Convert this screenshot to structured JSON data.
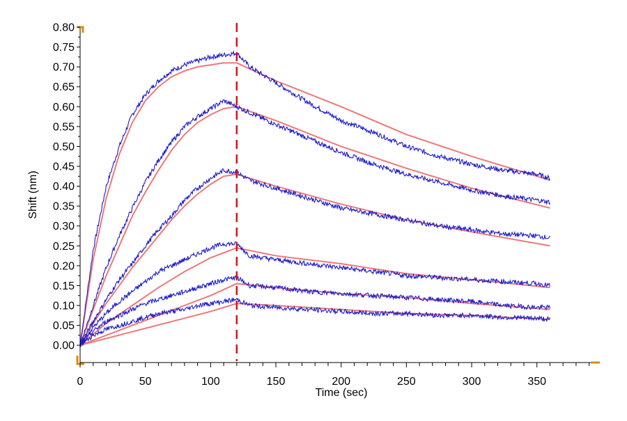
{
  "chart_data": {
    "type": "line",
    "title": "",
    "xlabel": "Time (sec)",
    "ylabel": "Shift (nm)",
    "xlim": [
      0,
      395
    ],
    "ylim": [
      -0.04,
      0.8
    ],
    "x_ticks": [
      0,
      50,
      100,
      150,
      200,
      250,
      300,
      350
    ],
    "x_tick_labels": [
      "0",
      "50",
      "100",
      "150",
      "200",
      "250",
      "300",
      "350"
    ],
    "y_ticks": [
      0.0,
      0.05,
      0.1,
      0.15,
      0.2,
      0.25,
      0.3,
      0.35,
      0.4,
      0.45,
      0.5,
      0.55,
      0.6,
      0.65,
      0.7,
      0.75,
      0.8
    ],
    "y_tick_labels": [
      "0.00",
      "0.05",
      "0.10",
      "0.15",
      "0.20",
      "0.25",
      "0.30",
      "0.35",
      "0.40",
      "0.45",
      "0.50",
      "0.55",
      "0.60",
      "0.65",
      "0.70",
      "0.75",
      "0.80"
    ],
    "grid": false,
    "legend": "none",
    "vertical_line": {
      "x": 120,
      "color": "#dd1111",
      "style": "dashed"
    },
    "colors": {
      "measured": "#1a1acc",
      "fit": "#ee7777",
      "axis_marker": "#e08a00"
    },
    "series": [
      {
        "kind": "measured",
        "t": [
          0,
          10,
          20,
          30,
          40,
          50,
          60,
          70,
          80,
          90,
          100,
          110,
          120,
          130,
          150,
          175,
          200,
          225,
          250,
          275,
          300,
          325,
          350,
          360
        ],
        "values": [
          0.0,
          0.24,
          0.4,
          0.5,
          0.58,
          0.63,
          0.665,
          0.69,
          0.705,
          0.715,
          0.725,
          0.73,
          0.735,
          0.7,
          0.66,
          0.61,
          0.565,
          0.535,
          0.5,
          0.475,
          0.455,
          0.44,
          0.43,
          0.42
        ]
      },
      {
        "kind": "fit",
        "t": [
          0,
          10,
          20,
          30,
          40,
          50,
          60,
          70,
          80,
          90,
          100,
          110,
          120,
          150,
          200,
          250,
          300,
          360
        ],
        "values": [
          0.0,
          0.215,
          0.37,
          0.48,
          0.56,
          0.615,
          0.65,
          0.675,
          0.69,
          0.7,
          0.705,
          0.71,
          0.71,
          0.665,
          0.6,
          0.53,
          0.475,
          0.415
        ]
      },
      {
        "kind": "measured",
        "t": [
          0,
          10,
          20,
          30,
          40,
          50,
          60,
          70,
          80,
          90,
          100,
          110,
          120,
          130,
          150,
          175,
          200,
          225,
          250,
          275,
          300,
          325,
          350,
          360
        ],
        "values": [
          0.0,
          0.1,
          0.195,
          0.275,
          0.345,
          0.41,
          0.465,
          0.51,
          0.55,
          0.575,
          0.595,
          0.615,
          0.6,
          0.585,
          0.555,
          0.52,
          0.485,
          0.455,
          0.43,
          0.41,
          0.39,
          0.375,
          0.365,
          0.36
        ]
      },
      {
        "kind": "fit",
        "t": [
          0,
          10,
          20,
          30,
          40,
          50,
          60,
          70,
          80,
          90,
          100,
          110,
          120,
          150,
          200,
          250,
          300,
          360
        ],
        "values": [
          0.0,
          0.09,
          0.175,
          0.25,
          0.325,
          0.385,
          0.44,
          0.49,
          0.53,
          0.56,
          0.58,
          0.595,
          0.6,
          0.565,
          0.5,
          0.445,
          0.395,
          0.345
        ]
      },
      {
        "kind": "measured",
        "t": [
          0,
          10,
          20,
          30,
          40,
          50,
          60,
          70,
          80,
          90,
          100,
          110,
          120,
          130,
          150,
          175,
          200,
          225,
          250,
          275,
          300,
          325,
          350,
          360
        ],
        "values": [
          0.0,
          0.06,
          0.115,
          0.165,
          0.205,
          0.25,
          0.29,
          0.325,
          0.365,
          0.395,
          0.42,
          0.44,
          0.435,
          0.415,
          0.395,
          0.37,
          0.345,
          0.33,
          0.315,
          0.3,
          0.29,
          0.28,
          0.275,
          0.27
        ]
      },
      {
        "kind": "fit",
        "t": [
          0,
          10,
          20,
          30,
          40,
          50,
          60,
          70,
          80,
          90,
          100,
          110,
          120,
          150,
          200,
          250,
          300,
          360
        ],
        "values": [
          0.0,
          0.055,
          0.105,
          0.15,
          0.195,
          0.235,
          0.275,
          0.315,
          0.35,
          0.38,
          0.405,
          0.425,
          0.43,
          0.4,
          0.355,
          0.315,
          0.285,
          0.25
        ]
      },
      {
        "kind": "measured",
        "t": [
          0,
          10,
          20,
          30,
          40,
          50,
          60,
          70,
          80,
          90,
          100,
          110,
          120,
          130,
          150,
          175,
          200,
          225,
          250,
          275,
          300,
          325,
          350,
          360
        ],
        "values": [
          0.0,
          0.045,
          0.08,
          0.11,
          0.135,
          0.16,
          0.185,
          0.2,
          0.215,
          0.23,
          0.245,
          0.255,
          0.255,
          0.225,
          0.215,
          0.205,
          0.195,
          0.185,
          0.175,
          0.17,
          0.165,
          0.16,
          0.155,
          0.15
        ]
      },
      {
        "kind": "fit",
        "t": [
          0,
          20,
          40,
          60,
          80,
          100,
          120,
          150,
          200,
          250,
          300,
          360
        ],
        "values": [
          0.0,
          0.055,
          0.1,
          0.145,
          0.185,
          0.22,
          0.245,
          0.225,
          0.205,
          0.18,
          0.165,
          0.145
        ]
      },
      {
        "kind": "measured",
        "t": [
          0,
          10,
          20,
          30,
          40,
          50,
          60,
          70,
          80,
          90,
          100,
          110,
          120,
          130,
          150,
          175,
          200,
          225,
          250,
          275,
          300,
          325,
          350,
          360
        ],
        "values": [
          0.0,
          0.035,
          0.06,
          0.075,
          0.09,
          0.105,
          0.115,
          0.125,
          0.135,
          0.145,
          0.155,
          0.165,
          0.17,
          0.15,
          0.145,
          0.135,
          0.13,
          0.125,
          0.12,
          0.115,
          0.11,
          0.1,
          0.095,
          0.095
        ]
      },
      {
        "kind": "fit",
        "t": [
          0,
          20,
          40,
          60,
          80,
          100,
          120,
          150,
          200,
          250,
          300,
          360
        ],
        "values": [
          0.0,
          0.025,
          0.05,
          0.075,
          0.1,
          0.125,
          0.155,
          0.145,
          0.13,
          0.12,
          0.105,
          0.09
        ]
      },
      {
        "kind": "measured",
        "t": [
          0,
          10,
          20,
          30,
          40,
          50,
          60,
          70,
          80,
          90,
          100,
          110,
          120,
          130,
          150,
          175,
          200,
          225,
          250,
          275,
          300,
          325,
          350,
          360
        ],
        "values": [
          0.0,
          0.025,
          0.04,
          0.05,
          0.06,
          0.07,
          0.08,
          0.085,
          0.09,
          0.1,
          0.105,
          0.11,
          0.115,
          0.1,
          0.095,
          0.09,
          0.085,
          0.08,
          0.08,
          0.075,
          0.075,
          0.07,
          0.068,
          0.065
        ]
      },
      {
        "kind": "fit",
        "t": [
          0,
          20,
          40,
          60,
          80,
          100,
          120,
          150,
          200,
          250,
          300,
          360
        ],
        "values": [
          0.0,
          0.017,
          0.034,
          0.051,
          0.068,
          0.085,
          0.105,
          0.1,
          0.09,
          0.08,
          0.075,
          0.065
        ]
      }
    ]
  }
}
